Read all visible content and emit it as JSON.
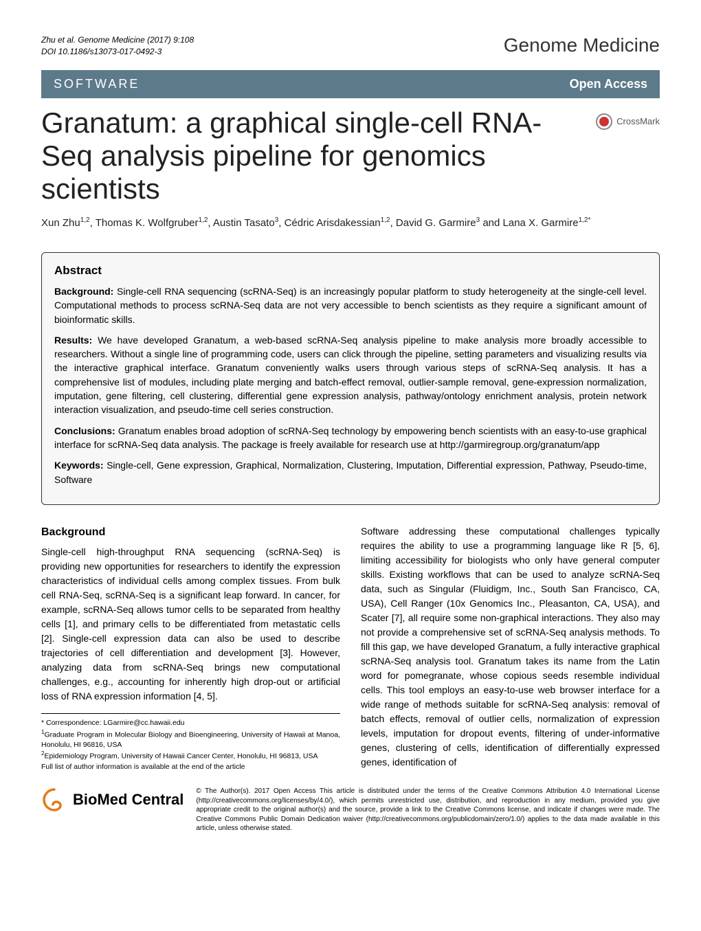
{
  "header": {
    "citation_line1": "Zhu et al. Genome Medicine  (2017) 9:108",
    "citation_line2": "DOI 10.1186/s13073-017-0492-3",
    "journal": "Genome Medicine"
  },
  "banner": {
    "category": "SOFTWARE",
    "access": "Open Access"
  },
  "title": "Granatum: a graphical single-cell RNA-Seq analysis pipeline for genomics scientists",
  "crossmark": "CrossMark",
  "authors_html": "Xun Zhu<sup>1,2</sup>, Thomas K. Wolfgruber<sup>1,2</sup>, Austin Tasato<sup>3</sup>, Cédric Arisdakessian<sup>1,2</sup>, David G. Garmire<sup>3</sup> and Lana X. Garmire<sup>1,2*</sup>",
  "abstract": {
    "heading": "Abstract",
    "background_label": "Background:",
    "background": " Single-cell RNA sequencing (scRNA-Seq) is an increasingly popular platform to study heterogeneity at the single-cell level. Computational methods to process scRNA-Seq data are not very accessible to bench scientists as they require a significant amount of bioinformatic skills.",
    "results_label": "Results:",
    "results": " We have developed Granatum, a web-based scRNA-Seq analysis pipeline to make analysis more broadly accessible to researchers. Without a single line of programming code, users can click through the pipeline, setting parameters and visualizing results via the interactive graphical interface. Granatum conveniently walks users through various steps of scRNA-Seq analysis. It has a comprehensive list of modules, including plate merging and batch-effect removal, outlier-sample removal, gene-expression normalization, imputation, gene filtering, cell clustering, differential gene expression analysis, pathway/ontology enrichment analysis, protein network interaction visualization, and pseudo-time cell series construction.",
    "conclusions_label": "Conclusions:",
    "conclusions": " Granatum enables broad adoption of scRNA-Seq technology by empowering bench scientists with an easy-to-use graphical interface for scRNA-Seq data analysis. The package is freely available for research use at http://garmiregroup.org/granatum/app",
    "keywords_label": "Keywords:",
    "keywords": " Single-cell, Gene expression, Graphical, Normalization, Clustering, Imputation, Differential expression, Pathway, Pseudo-time, Software"
  },
  "body": {
    "background_heading": "Background",
    "col1": "Single-cell high-throughput RNA sequencing (scRNA-Seq) is providing new opportunities for researchers to identify the expression characteristics of individual cells among complex tissues. From bulk cell RNA-Seq, scRNA-Seq is a significant leap forward. In cancer, for example, scRNA-Seq allows tumor cells to be separated from healthy cells [1], and primary cells to be differentiated from metastatic cells [2]. Single-cell expression data can also be used to describe trajectories of cell differentiation and development [3]. However, analyzing data from scRNA-Seq brings new computational challenges, e.g., accounting for inherently high drop-out or artificial loss of RNA expression information [4, 5].",
    "col2": "Software addressing these computational challenges typically requires the ability to use a programming language like R [5, 6], limiting accessibility for biologists who only have general computer skills. Existing workflows that can be used to analyze scRNA-Seq data, such as Singular (Fluidigm, Inc., South San Francisco, CA, USA), Cell Ranger (10x Genomics Inc., Pleasanton, CA, USA), and Scater [7], all require some non-graphical interactions. They also may not provide a comprehensive set of scRNA-Seq analysis methods. To fill this gap, we have developed Granatum, a fully interactive graphical scRNA-Seq analysis tool. Granatum takes its name from the Latin word for pomegranate, whose copious seeds resemble individual cells. This tool employs an easy-to-use web browser interface for a wide range of methods suitable for scRNA-Seq analysis: removal of batch effects, removal of outlier cells, normalization of expression levels, imputation for dropout events, filtering of under-informative genes, clustering of cells, identification of differentially expressed genes, identification of"
  },
  "footnotes": {
    "correspondence": "* Correspondence: LGarmire@cc.hawaii.edu",
    "affil1": "Graduate Program in Molecular Biology and Bioengineering, University of Hawaii at Manoa, Honolulu, HI 96816, USA",
    "affil2": "Epidemiology Program, University of Hawaii Cancer Center, Honolulu, HI 96813, USA",
    "full_list": "Full list of author information is available at the end of the article"
  },
  "footer": {
    "bmc_prefix": "BioMed",
    "bmc_suffix": " Central",
    "license": "© The Author(s). 2017 Open Access This article is distributed under the terms of the Creative Commons Attribution 4.0 International License (http://creativecommons.org/licenses/by/4.0/), which permits unrestricted use, distribution, and reproduction in any medium, provided you give appropriate credit to the original author(s) and the source, provide a link to the Creative Commons license, and indicate if changes were made. The Creative Commons Public Domain Dedication waiver (http://creativecommons.org/publicdomain/zero/1.0/) applies to the data made available in this article, unless otherwise stated."
  },
  "colors": {
    "banner_bg": "#5d7a8a",
    "abstract_bg": "#f7f7f7",
    "crossmark_red": "#c33"
  }
}
